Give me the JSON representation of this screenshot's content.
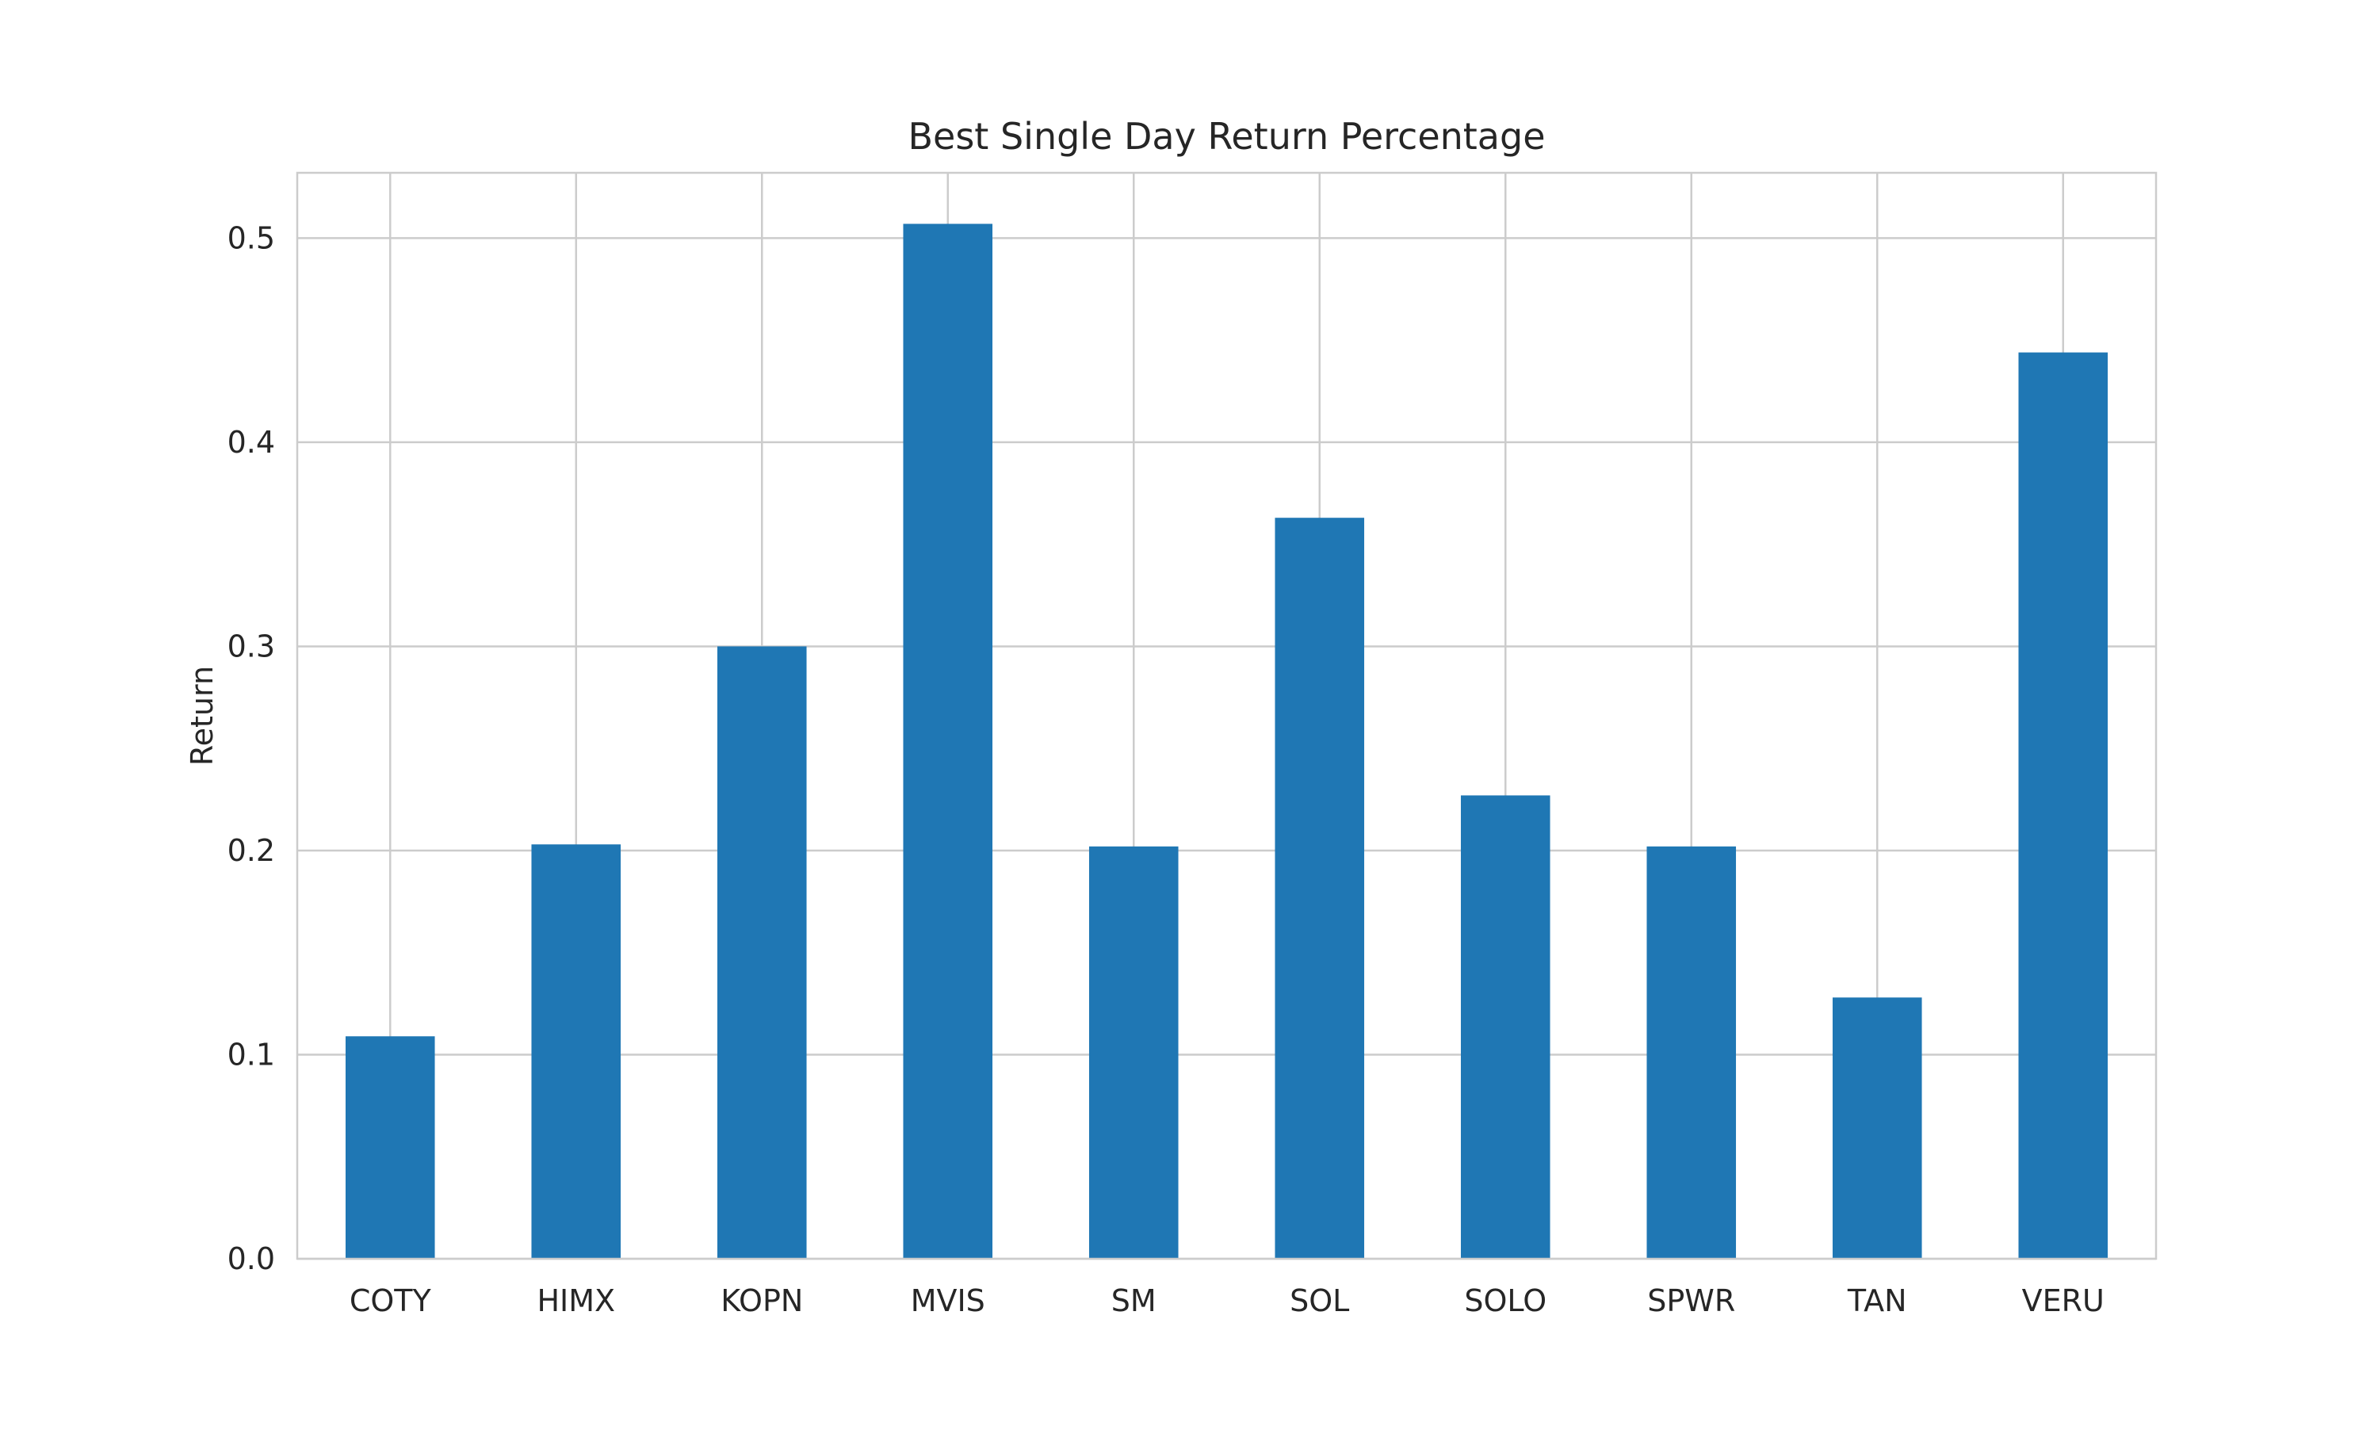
{
  "chart_data": {
    "type": "bar",
    "title": "Best Single Day Return Percentage",
    "xlabel": "",
    "ylabel": "Return",
    "categories": [
      "COTY",
      "HIMX",
      "KOPN",
      "MVIS",
      "SM",
      "SOL",
      "SOLO",
      "SPWR",
      "TAN",
      "VERU"
    ],
    "values": [
      0.109,
      0.203,
      0.3,
      0.507,
      0.202,
      0.363,
      0.227,
      0.202,
      0.128,
      0.444
    ],
    "ylim": [
      0.0,
      0.532
    ],
    "yticks": [
      "0.0",
      "0.1",
      "0.2",
      "0.3",
      "0.4",
      "0.5"
    ],
    "grid": true,
    "colors": {
      "bar": "#1f77b4",
      "grid": "#cccccc",
      "axes": "#cccccc",
      "text": "#262626"
    }
  }
}
